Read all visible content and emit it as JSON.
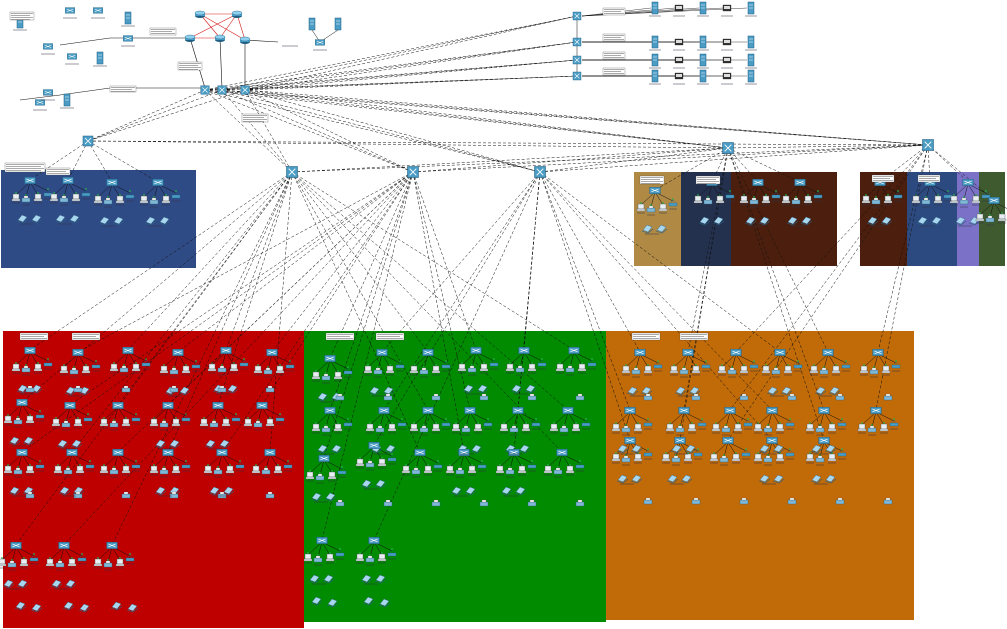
{
  "diagram": {
    "zones": [
      {
        "id": "zone-navy",
        "color": "#2f4b86"
      },
      {
        "id": "zone-khaki",
        "color": "#b08a45"
      },
      {
        "id": "zone-darknavy",
        "color": "#23314f"
      },
      {
        "id": "zone-brown-1",
        "color": "#4b1e0e"
      },
      {
        "id": "zone-brown-2",
        "color": "#4b1e0e"
      },
      {
        "id": "zone-navy-2",
        "color": "#2d4a80"
      },
      {
        "id": "zone-lilac",
        "color": "#7b72c8"
      },
      {
        "id": "zone-olive",
        "color": "#3e5a2e"
      },
      {
        "id": "zone-red",
        "color": "#bf0000"
      },
      {
        "id": "zone-green",
        "color": "#008b00"
      },
      {
        "id": "zone-orange",
        "color": "#c06a08"
      }
    ],
    "colors": {
      "device": "#4a9cc4",
      "device_dark": "#1f5f82",
      "link": "#111111",
      "wan_link": "#d41a1a",
      "port_up": "#22b14c"
    },
    "icons": [
      "router-icon",
      "switch-icon",
      "pc-icon",
      "laptop-icon",
      "printer-icon",
      "server-icon",
      "access-point-icon",
      "phone-icon"
    ]
  }
}
